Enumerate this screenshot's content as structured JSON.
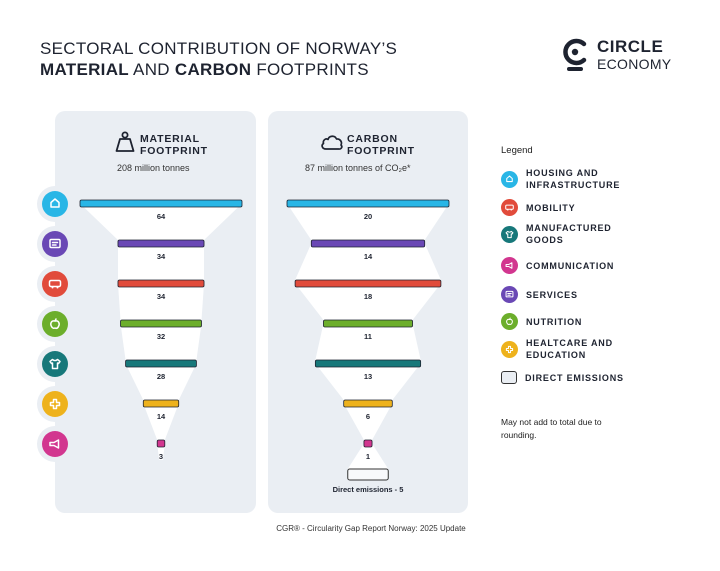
{
  "title": {
    "line1": "SECTORAL CONTRIBUTION OF NORWAY’S",
    "line2_bold1": "MATERIAL",
    "line2_mid": " AND ",
    "line2_bold2": "CARBON",
    "line2_end": " FOOTPRINTS"
  },
  "logo": {
    "word1": "CIRCLE",
    "word2": "ECONOMY"
  },
  "colors": {
    "panel": "#eaeef3",
    "funnel": "#ffffff",
    "housing": "#29b6e6",
    "mobility": "#e14b3b",
    "manufactured": "#17787a",
    "communication": "#d2368f",
    "services": "#6a48b5",
    "nutrition": "#6cae2b",
    "healthcare": "#eeb21c"
  },
  "chart_data": [
    {
      "type": "bar",
      "title": "MATERIAL FOOTPRINT",
      "subtitle": "208 million tonnes",
      "categories": [
        "Housing and infrastructure",
        "Services",
        "Mobility",
        "Nutrition",
        "Manufactured goods",
        "Healthcare and education",
        "Communication"
      ],
      "category_keys": [
        "housing",
        "services",
        "mobility",
        "nutrition",
        "manufactured",
        "healthcare",
        "communication"
      ],
      "values": [
        64,
        34,
        34,
        32,
        28,
        14,
        3
      ],
      "unit": "million tonnes"
    },
    {
      "type": "bar",
      "title": "CARBON FOOTPRINT",
      "subtitle": "87 million tonnes of CO₂e*",
      "categories": [
        "Housing and infrastructure",
        "Services",
        "Mobility",
        "Nutrition",
        "Manufactured goods",
        "Healthcare and education",
        "Communication"
      ],
      "category_keys": [
        "housing",
        "services",
        "mobility",
        "nutrition",
        "manufactured",
        "healthcare",
        "communication"
      ],
      "values": [
        20,
        14,
        18,
        11,
        13,
        6,
        1
      ],
      "unit": "million tonnes CO2e",
      "direct_emissions": {
        "label": "Direct emissions - 5",
        "value": 5
      }
    }
  ],
  "panels": {
    "material": {
      "title1": "MATERIAL",
      "title2": "FOOTPRINT",
      "subtitle": "208 million tonnes"
    },
    "carbon": {
      "title1": "CARBON",
      "title2": "FOOTPRINT",
      "subtitle": "87 million tonnes of CO₂e*"
    }
  },
  "row_icons": [
    "house-icon",
    "services-icon",
    "mobility-icon",
    "nutrition-icon",
    "manufactured-icon",
    "healthcare-icon",
    "communication-icon"
  ],
  "legend": {
    "title": "Legend",
    "items": [
      {
        "label": "HOUSING AND INFRASTRUCTURE",
        "key": "housing",
        "icon": "house-icon"
      },
      {
        "label": "MOBILITY",
        "key": "mobility",
        "icon": "mobility-icon"
      },
      {
        "label": "MANUFACTURED GOODS",
        "key": "manufactured",
        "icon": "manufactured-icon"
      },
      {
        "label": "COMMUNICATION",
        "key": "communication",
        "icon": "communication-icon"
      },
      {
        "label": "SERVICES",
        "key": "services",
        "icon": "services-icon"
      },
      {
        "label": "NUTRITION",
        "key": "nutrition",
        "icon": "nutrition-icon"
      },
      {
        "label": "HEALTCARE AND EDUCATION",
        "key": "healthcare",
        "icon": "healthcare-icon"
      },
      {
        "label": "DIRECT EMISSIONS",
        "key": "direct",
        "icon": "direct-emissions-swatch"
      }
    ]
  },
  "note": "May not add to total due to rounding.",
  "source": "CGR® - Circularity Gap Report Norway: 2025 Update"
}
